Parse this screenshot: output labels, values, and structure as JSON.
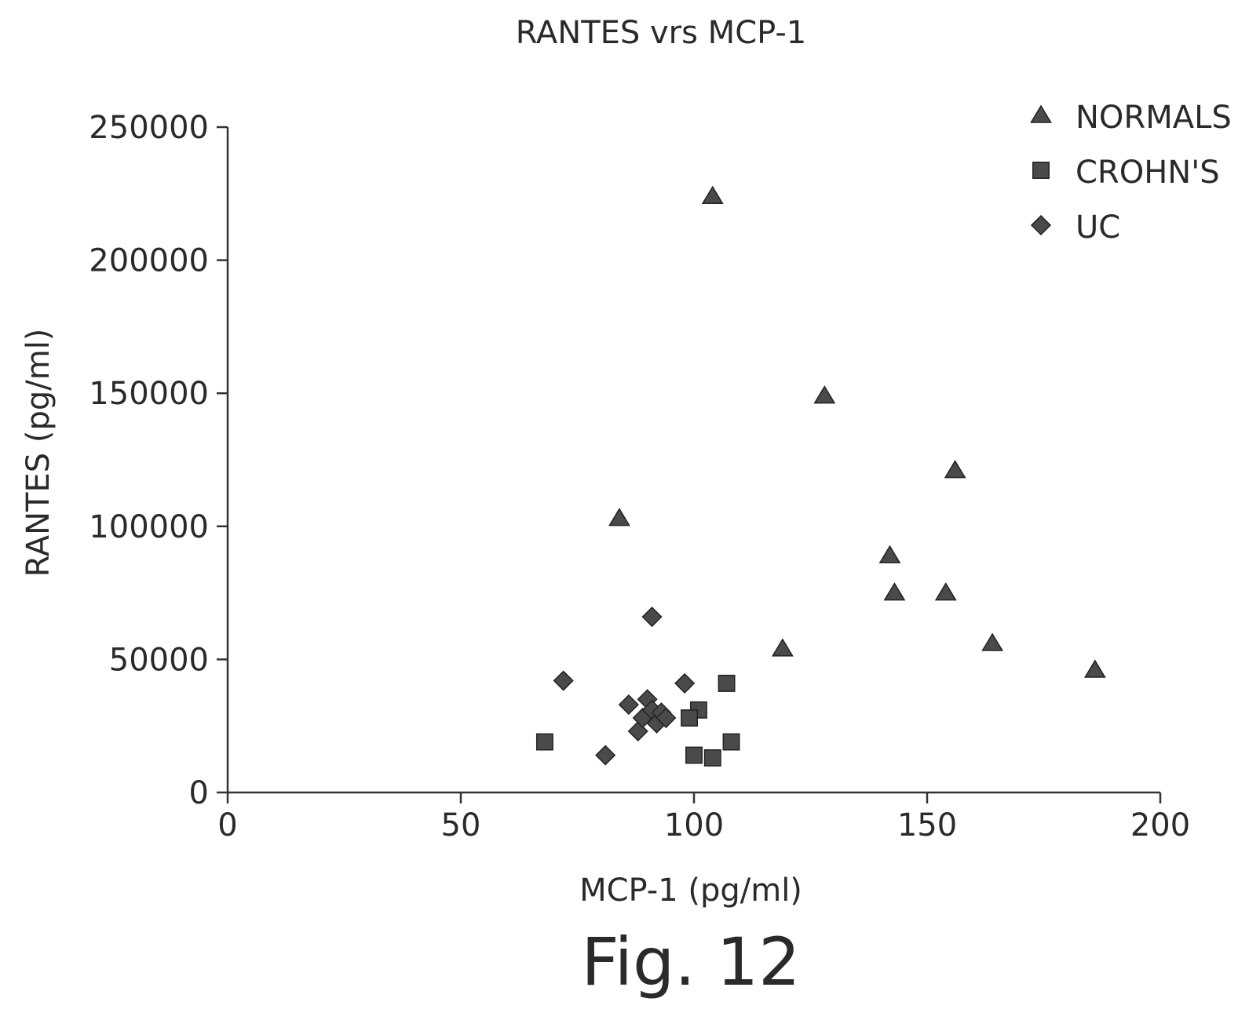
{
  "chart_data": {
    "type": "scatter",
    "title": "RANTES vrs MCP-1",
    "xlabel": "MCP-1 (pg/ml)",
    "ylabel": "RANTES (pg/ml)",
    "xlim": [
      0,
      200
    ],
    "ylim": [
      0,
      250000
    ],
    "x_ticks": [
      "0",
      "50",
      "100",
      "150",
      "200"
    ],
    "y_ticks": [
      "0",
      "50000",
      "100000",
      "150000",
      "200000",
      "250000"
    ],
    "grid": false,
    "legend_position": "top-right",
    "series": [
      {
        "name": "NORMALS",
        "marker": "triangle",
        "points": [
          [
            104,
            224000
          ],
          [
            128,
            149000
          ],
          [
            84,
            103000
          ],
          [
            156,
            121000
          ],
          [
            142,
            89000
          ],
          [
            143,
            75000
          ],
          [
            154,
            75000
          ],
          [
            119,
            54000
          ],
          [
            164,
            56000
          ],
          [
            186,
            46000
          ]
        ]
      },
      {
        "name": "CROHN'S",
        "marker": "square",
        "points": [
          [
            68,
            19000
          ],
          [
            107,
            41000
          ],
          [
            101,
            31000
          ],
          [
            99,
            28000
          ],
          [
            100,
            14000
          ],
          [
            104,
            13000
          ],
          [
            108,
            19000
          ]
        ]
      },
      {
        "name": "UC",
        "marker": "diamond",
        "points": [
          [
            72,
            42000
          ],
          [
            91,
            66000
          ],
          [
            98,
            41000
          ],
          [
            81,
            14000
          ],
          [
            86,
            33000
          ],
          [
            88,
            23000
          ],
          [
            89,
            28000
          ],
          [
            90,
            35000
          ],
          [
            91,
            31000
          ],
          [
            92,
            26000
          ],
          [
            93,
            30000
          ],
          [
            94,
            28000
          ]
        ]
      }
    ]
  },
  "caption": "Fig. 12",
  "colors": {
    "marker_fill": "#4a4a4a",
    "axis": "#333333",
    "text": "#2a2a2a"
  }
}
